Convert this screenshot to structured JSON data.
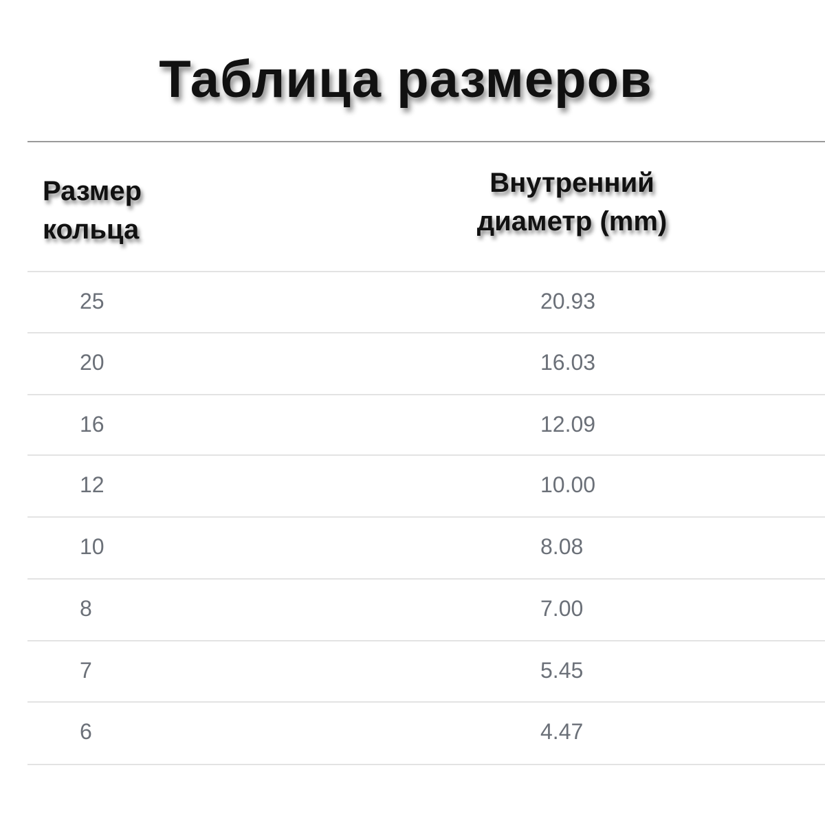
{
  "title": "Таблица размеров",
  "headers": {
    "size_line1": "Размер",
    "size_line2": "кольца",
    "diameter_line1": "Внутренний",
    "diameter_line2": "диаметр (mm)"
  },
  "rows": [
    {
      "size": "25",
      "diameter": "20.93"
    },
    {
      "size": "20",
      "diameter": "16.03"
    },
    {
      "size": "16",
      "diameter": "12.09"
    },
    {
      "size": "12",
      "diameter": "10.00"
    },
    {
      "size": "10",
      "diameter": "8.08"
    },
    {
      "size": "8",
      "diameter": "7.00"
    },
    {
      "size": "7",
      "diameter": "5.45"
    },
    {
      "size": "6",
      "diameter": "4.47"
    }
  ]
}
